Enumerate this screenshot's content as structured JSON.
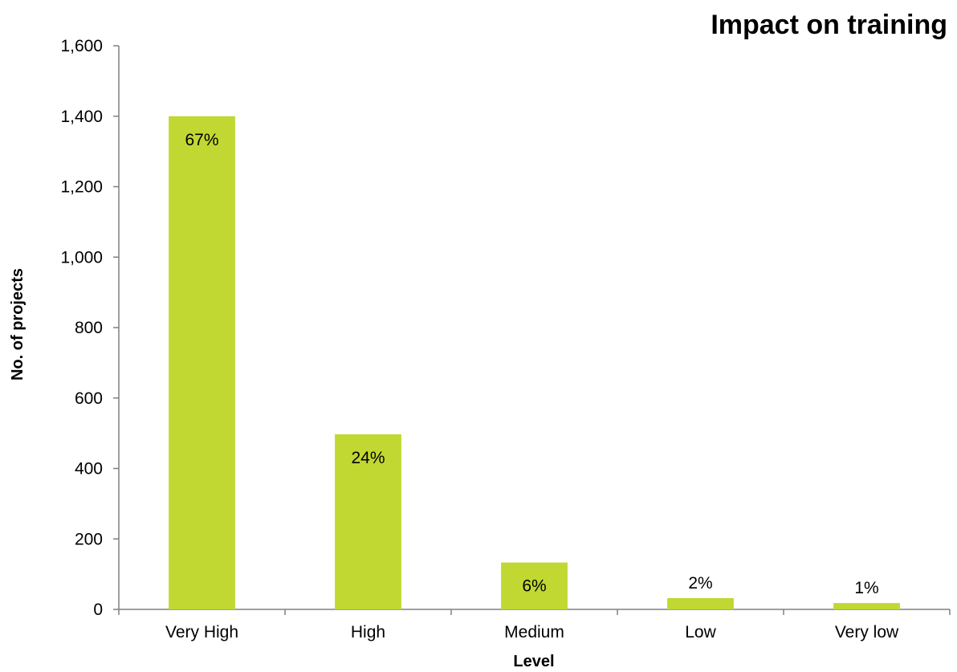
{
  "chart_data": {
    "type": "bar",
    "title": "Impact on training",
    "xlabel": "Level",
    "ylabel": "No. of projects",
    "categories": [
      "Very High",
      "High",
      "Medium",
      "Low",
      "Very low"
    ],
    "values": [
      1400,
      497,
      133,
      32,
      18
    ],
    "data_labels": [
      "67%",
      "24%",
      "6%",
      "2%",
      "1%"
    ],
    "ylim": [
      0,
      1600
    ],
    "yticks": [
      0,
      200,
      400,
      600,
      800,
      1000,
      1200,
      1400,
      1600
    ],
    "ytick_labels": [
      "0",
      "200",
      "400",
      "600",
      "800",
      "1,000",
      "1,200",
      "1,400",
      "1,600"
    ],
    "grid": false,
    "legend": "none",
    "bar_color": "#c0d831",
    "axis_color": "#808080"
  }
}
